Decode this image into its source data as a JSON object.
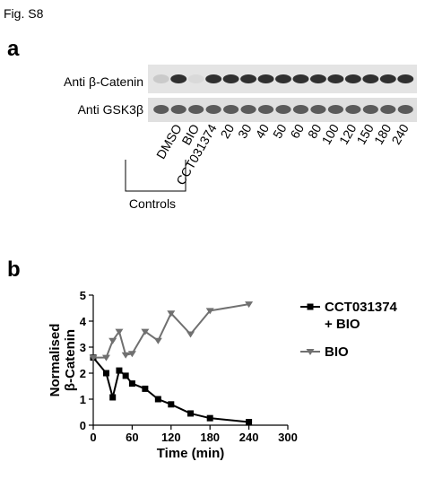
{
  "figure_label": "Fig. S8",
  "panel_a": {
    "label": "a",
    "rows": [
      "Anti β-Catenin",
      "Anti GSK3β"
    ],
    "lanes": [
      "DMSO",
      "BIO",
      "CCT031374",
      "20",
      "30",
      "40",
      "50",
      "60",
      "80",
      "100",
      "120",
      "150",
      "180",
      "240"
    ],
    "group_label": "Controls"
  },
  "panel_b": {
    "label": "b"
  },
  "chart_data": {
    "type": "line",
    "xlabel": "Time (min)",
    "ylabel": "Normalised β-Catenin",
    "x": [
      0,
      20,
      30,
      40,
      50,
      60,
      80,
      100,
      120,
      150,
      180,
      240
    ],
    "series": [
      {
        "name": "CCT031374 + BIO",
        "color": "#000000",
        "marker": "square",
        "values": [
          2.6,
          2.0,
          1.07,
          2.1,
          1.9,
          1.6,
          1.4,
          1.0,
          0.8,
          0.45,
          0.27,
          0.12
        ]
      },
      {
        "name": "BIO",
        "color": "#707070",
        "marker": "triangle-down",
        "values": [
          2.6,
          2.6,
          3.25,
          3.6,
          2.7,
          2.75,
          3.6,
          3.25,
          4.3,
          3.5,
          4.4,
          4.65
        ]
      }
    ],
    "xlim": [
      0,
      300
    ],
    "xticks": [
      0,
      60,
      120,
      180,
      240,
      300
    ],
    "ylim": [
      0,
      5
    ],
    "yticks": [
      0,
      1,
      2,
      3,
      4,
      5
    ],
    "grid": false,
    "legend": "right"
  }
}
